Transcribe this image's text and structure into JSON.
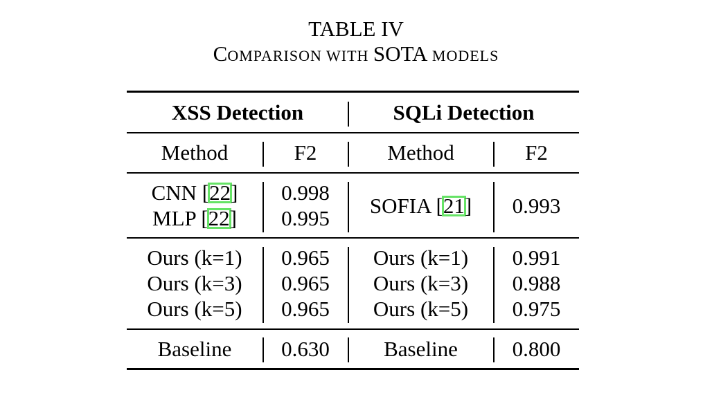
{
  "caption": {
    "table_number": "TABLE IV",
    "title_c": "C",
    "title_omparison": "OMPARISON WITH ",
    "title_sota": "SOTA",
    "title_models": " MODELS"
  },
  "header": {
    "xss": "XSS Detection",
    "sqli": "SQLi Detection",
    "method": "Method",
    "f2": "F2"
  },
  "sota": {
    "xss": [
      {
        "name": "CNN [",
        "ref": "22",
        "close": "]",
        "f2": "0.998"
      },
      {
        "name": "MLP [",
        "ref": "22",
        "close": "]",
        "f2": "0.995"
      }
    ],
    "sqli": {
      "name": "SOFIA [",
      "ref": "21",
      "close": "]",
      "f2": "0.993"
    }
  },
  "ours": [
    {
      "xss_method": "Ours (k=1)",
      "xss_f2": "0.965",
      "sqli_method": "Ours (k=1)",
      "sqli_f2": "0.991"
    },
    {
      "xss_method": "Ours (k=3)",
      "xss_f2": "0.965",
      "sqli_method": "Ours (k=3)",
      "sqli_f2": "0.988"
    },
    {
      "xss_method": "Ours (k=5)",
      "xss_f2": "0.965",
      "sqli_method": "Ours (k=5)",
      "sqli_f2": "0.975"
    }
  ],
  "baseline": {
    "xss_method": "Baseline",
    "xss_f2": "0.630",
    "sqli_method": "Baseline",
    "sqli_f2": "0.800"
  }
}
